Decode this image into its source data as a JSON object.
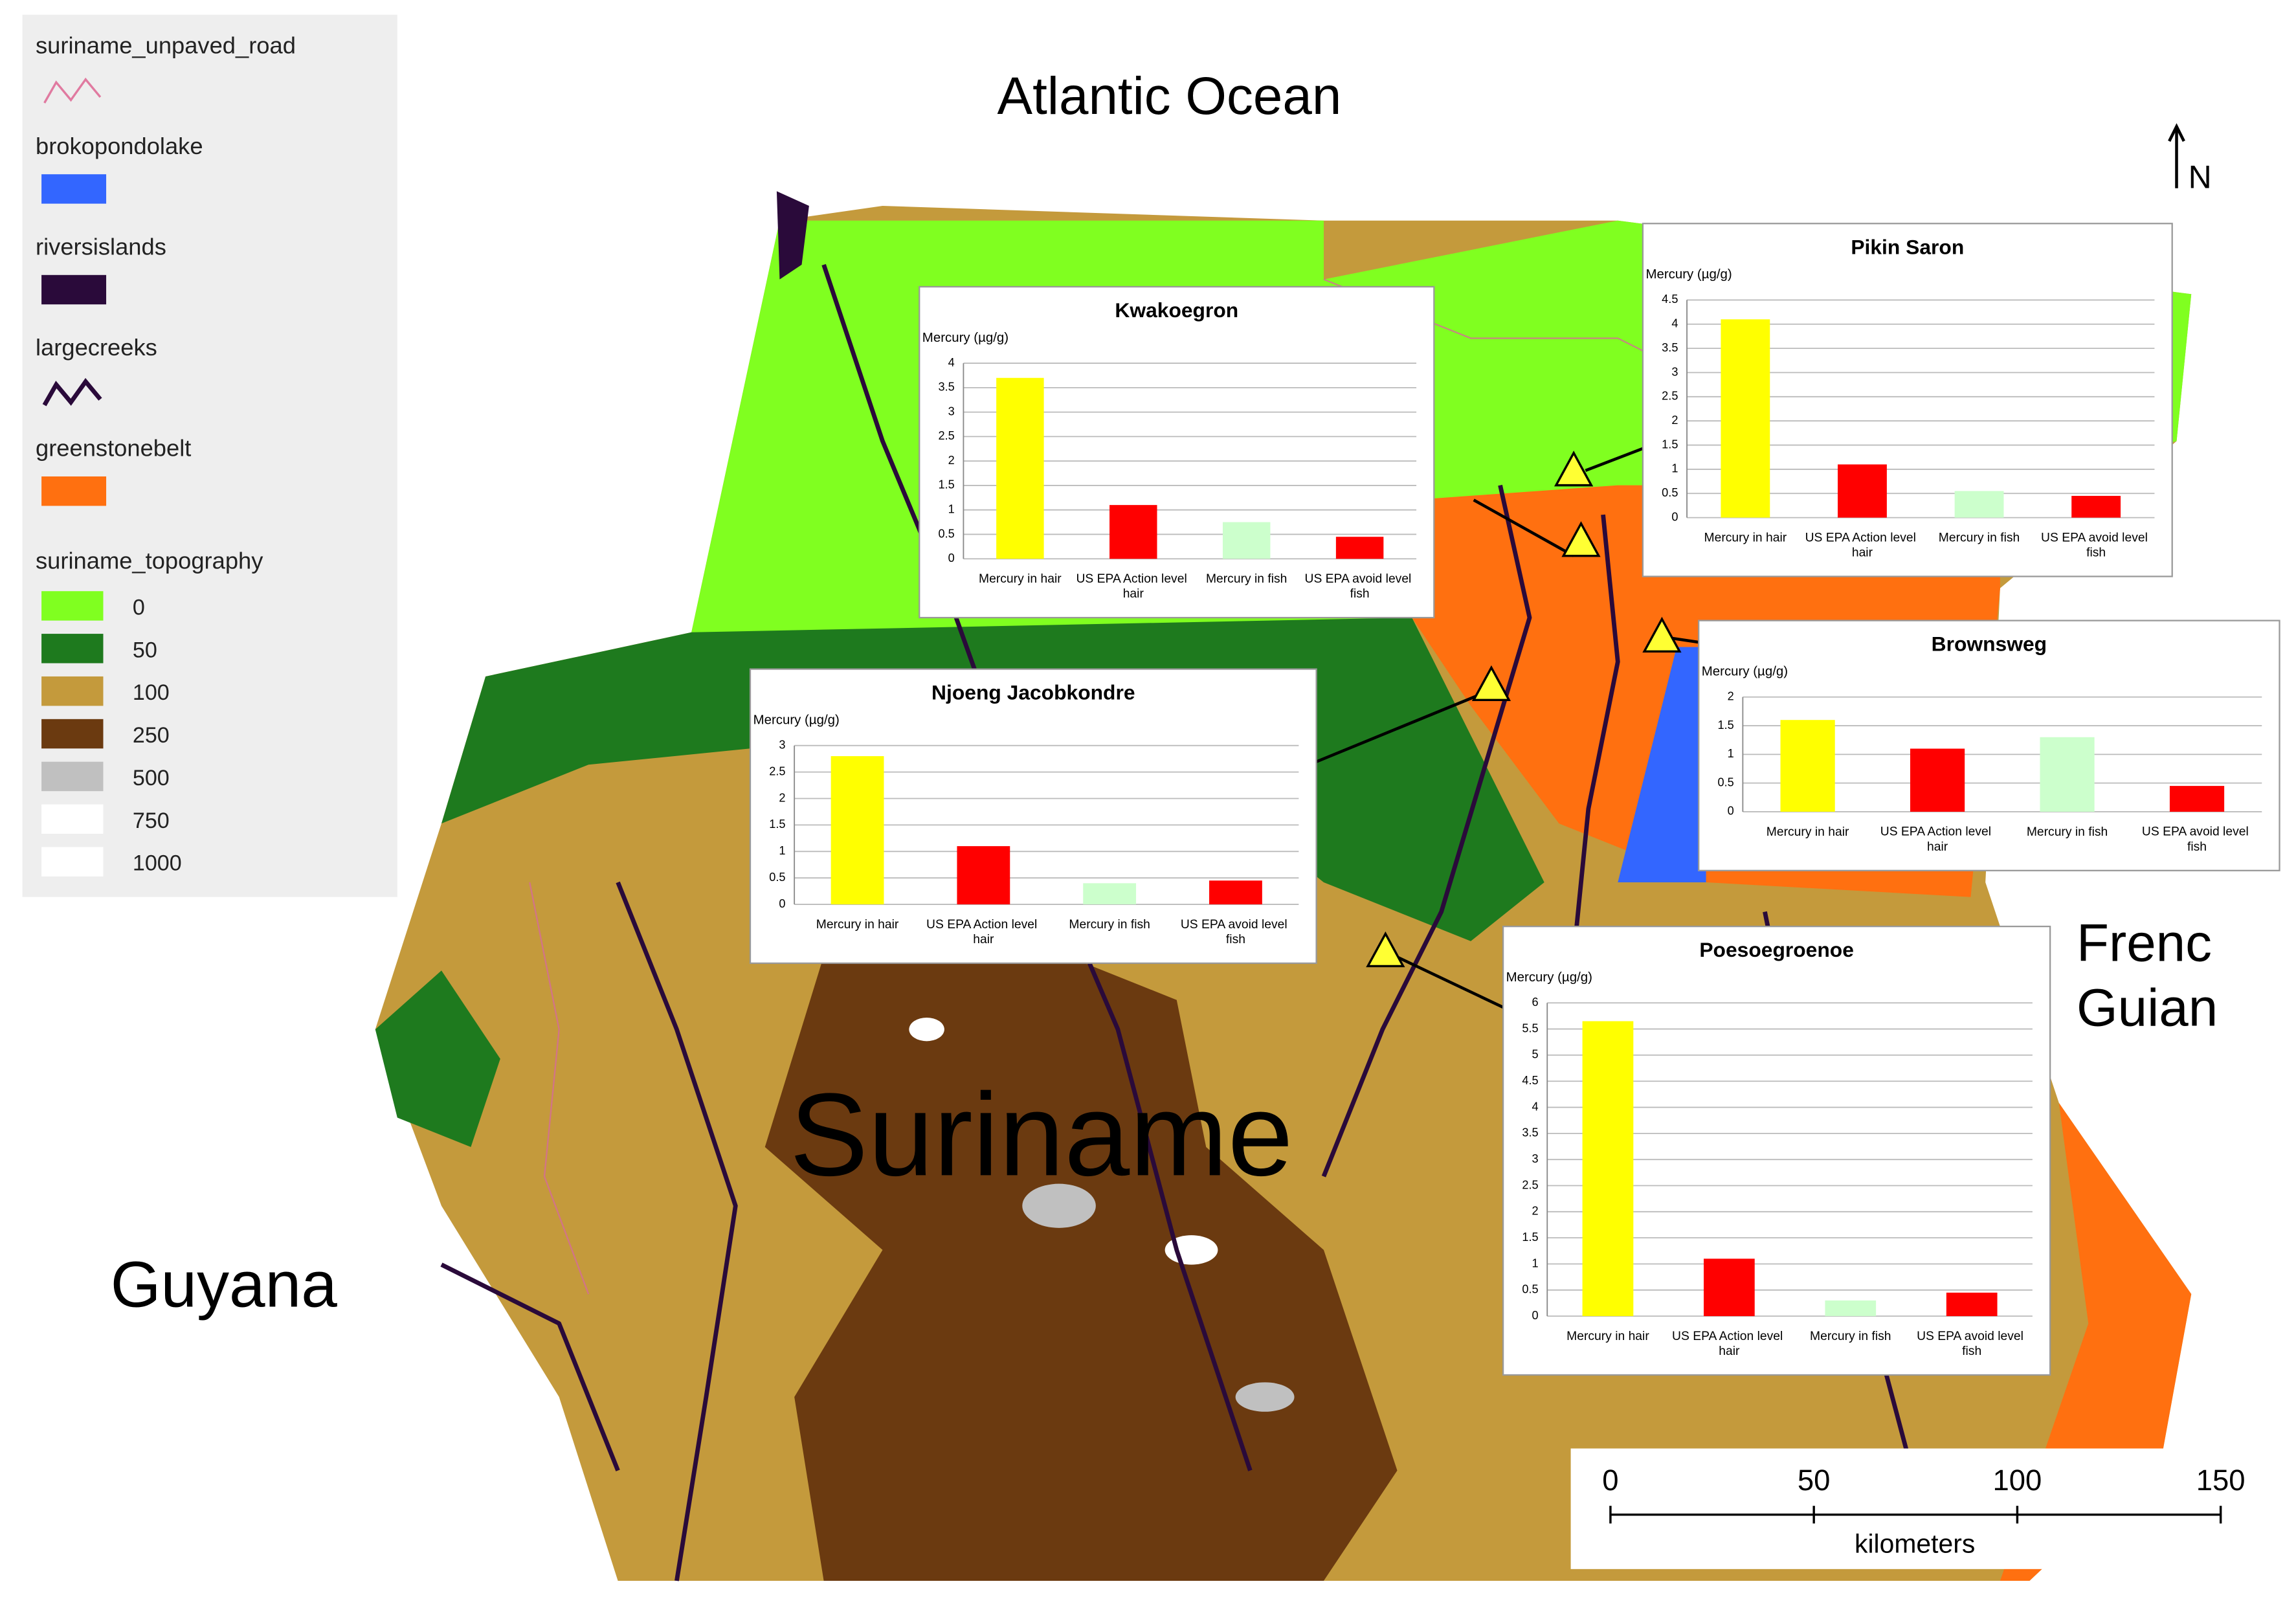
{
  "legend": {
    "layers": [
      {
        "name": "suriname_unpaved_road",
        "symbol": "line",
        "color": "#e07aa0"
      },
      {
        "name": "brokopondolake",
        "symbol": "fill",
        "color": "#3366ff"
      },
      {
        "name": "riversislands",
        "symbol": "fill",
        "color": "#2a0a3a"
      },
      {
        "name": "largecreeks",
        "symbol": "line",
        "color": "#2a0a3a"
      },
      {
        "name": "greenstonebelt",
        "symbol": "fill",
        "color": "#ff7010"
      }
    ],
    "topography": {
      "name": "suriname_topography",
      "classes": [
        {
          "label": 0,
          "color": "#80ff20"
        },
        {
          "label": 50,
          "color": "#1e7a1e"
        },
        {
          "label": 100,
          "color": "#c49a3c"
        },
        {
          "label": 250,
          "color": "#6b3a10"
        },
        {
          "label": 500,
          "color": "#c0c0c0"
        },
        {
          "label": 750,
          "color": "#ffffff"
        },
        {
          "label": 1000,
          "color": "#ffffff"
        }
      ]
    }
  },
  "map_labels": {
    "ocean": "Atlantic Ocean",
    "country": "Suriname",
    "west": "Guyana",
    "east_line1": "Frenc",
    "east_line2": "Guian",
    "north": "N"
  },
  "scale_bar": {
    "ticks": [
      0,
      50,
      100,
      150
    ],
    "xlim": [
      0,
      150
    ],
    "unit": "kilometers"
  },
  "chart_data": [
    {
      "type": "bar",
      "title": "Kwakoegron",
      "y_label": "Mercury (µg/g)",
      "categories": [
        "Mercury in hair",
        "US EPA Action level hair",
        "Mercury in fish",
        "US EPA avoid level fish"
      ],
      "values": [
        3.7,
        1.1,
        0.75,
        0.45
      ],
      "colors": [
        "#ffff00",
        "#ff0000",
        "#ccffcc",
        "#ff0000"
      ],
      "ylim": [
        0,
        4
      ],
      "yticks": [
        0,
        0.5,
        1,
        1.5,
        2,
        2.5,
        3,
        3.5,
        4
      ],
      "grid": true
    },
    {
      "type": "bar",
      "title": "Pikin Saron",
      "y_label": "Mercury (µg/g)",
      "categories": [
        "Mercury in hair",
        "US EPA Action level hair",
        "Mercury in fish",
        "US EPA avoid level fish"
      ],
      "values": [
        4.1,
        1.1,
        0.55,
        0.45
      ],
      "colors": [
        "#ffff00",
        "#ff0000",
        "#ccffcc",
        "#ff0000"
      ],
      "ylim": [
        0,
        4.5
      ],
      "yticks": [
        0,
        0.5,
        1,
        1.5,
        2,
        2.5,
        3,
        3.5,
        4,
        4.5
      ],
      "grid": true
    },
    {
      "type": "bar",
      "title": "Brownsweg",
      "y_label": "Mercury (µg/g)",
      "categories": [
        "Mercury in hair",
        "US EPA Action level hair",
        "Mercury in fish",
        "US EPA avoid level fish"
      ],
      "values": [
        1.6,
        1.1,
        1.3,
        0.45
      ],
      "colors": [
        "#ffff00",
        "#ff0000",
        "#ccffcc",
        "#ff0000"
      ],
      "ylim": [
        0,
        2
      ],
      "yticks": [
        0,
        0.5,
        1,
        1.5,
        2
      ],
      "grid": true
    },
    {
      "type": "bar",
      "title": "Njoeng Jacobkondre",
      "y_label": "Mercury (µg/g)",
      "categories": [
        "Mercury in hair",
        "US EPA Action level hair",
        "Mercury in fish",
        "US EPA avoid level fish"
      ],
      "values": [
        2.8,
        1.1,
        0.4,
        0.45
      ],
      "colors": [
        "#ffff00",
        "#ff0000",
        "#ccffcc",
        "#ff0000"
      ],
      "ylim": [
        0,
        3
      ],
      "yticks": [
        0,
        0.5,
        1,
        1.5,
        2,
        2.5,
        3
      ],
      "grid": true
    },
    {
      "type": "bar",
      "title": "Poesoegroenoe",
      "y_label": "Mercury (µg/g)",
      "categories": [
        "Mercury in hair",
        "US EPA Action level hair",
        "Mercury in fish",
        "US EPA avoid level fish"
      ],
      "values": [
        5.65,
        1.1,
        0.3,
        0.45
      ],
      "colors": [
        "#ffff00",
        "#ff0000",
        "#ccffcc",
        "#ff0000"
      ],
      "ylim": [
        0,
        6
      ],
      "yticks": [
        0,
        0.5,
        1,
        1.5,
        2,
        2.5,
        3,
        3.5,
        4,
        4.5,
        5,
        5.5,
        6
      ],
      "grid": true
    }
  ]
}
